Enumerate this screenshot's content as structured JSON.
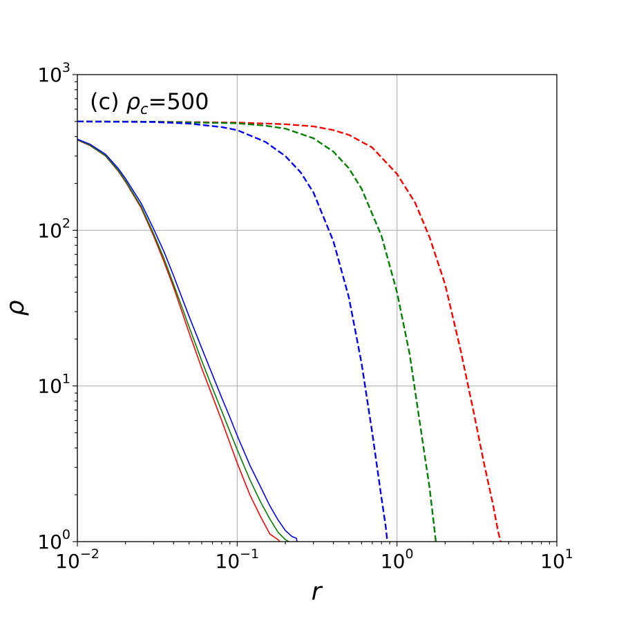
{
  "chart_data": {
    "type": "line",
    "annotation": {
      "prefix": "(c) ",
      "symbol": "ρ",
      "subscript": "c",
      "suffix": "=500"
    },
    "xlabel": "r",
    "ylabel": "ρ",
    "xscale": "log",
    "yscale": "log",
    "xlim": [
      0.01,
      10
    ],
    "ylim": [
      1,
      1000
    ],
    "grid": true,
    "xticks": [
      {
        "value": 0.01,
        "base": "10",
        "exp": "−2"
      },
      {
        "value": 0.1,
        "base": "10",
        "exp": "−1"
      },
      {
        "value": 1,
        "base": "10",
        "exp": "0"
      },
      {
        "value": 10,
        "base": "10",
        "exp": "1"
      }
    ],
    "yticks": [
      {
        "value": 1,
        "base": "10",
        "exp": "0"
      },
      {
        "value": 10,
        "base": "10",
        "exp": "1"
      },
      {
        "value": 100,
        "base": "10",
        "exp": "2"
      },
      {
        "value": 1000,
        "base": "10",
        "exp": "3"
      }
    ],
    "series": [
      {
        "color": "#ff0000",
        "style": "solid",
        "x": [
          0.01,
          0.012,
          0.015,
          0.018,
          0.02,
          0.025,
          0.03,
          0.035,
          0.04,
          0.05,
          0.06,
          0.07,
          0.08,
          0.09,
          0.1,
          0.12,
          0.14,
          0.16,
          0.18,
          0.185
        ],
        "y": [
          380,
          350,
          300,
          240,
          205,
          140,
          92,
          62,
          43,
          22,
          13,
          8.6,
          6.0,
          4.3,
          3.2,
          2.0,
          1.45,
          1.12,
          1.03,
          1.0
        ]
      },
      {
        "color": "#008000",
        "style": "solid",
        "x": [
          0.01,
          0.012,
          0.015,
          0.018,
          0.02,
          0.025,
          0.03,
          0.035,
          0.04,
          0.05,
          0.06,
          0.07,
          0.08,
          0.09,
          0.1,
          0.12,
          0.14,
          0.16,
          0.18,
          0.2,
          0.21
        ],
        "y": [
          382,
          352,
          302,
          243,
          208,
          143,
          95,
          65,
          45,
          24,
          14.5,
          9.7,
          6.9,
          5.1,
          3.9,
          2.5,
          1.8,
          1.4,
          1.15,
          1.03,
          1.0
        ]
      },
      {
        "color": "#0000ff",
        "style": "solid",
        "x": [
          0.01,
          0.012,
          0.015,
          0.018,
          0.02,
          0.025,
          0.03,
          0.035,
          0.04,
          0.05,
          0.06,
          0.07,
          0.08,
          0.09,
          0.1,
          0.12,
          0.14,
          0.16,
          0.18,
          0.2,
          0.22,
          0.235,
          0.237
        ],
        "y": [
          385,
          357,
          308,
          250,
          215,
          150,
          102,
          72,
          51,
          28,
          17.5,
          11.8,
          8.4,
          6.3,
          4.8,
          3.1,
          2.25,
          1.7,
          1.38,
          1.18,
          1.08,
          1.05,
          1.0
        ]
      },
      {
        "color": "#ff0000",
        "style": "dashed",
        "x": [
          0.01,
          0.03,
          0.1,
          0.2,
          0.3,
          0.4,
          0.5,
          0.7,
          1.0,
          1.3,
          1.6,
          2.0,
          2.5,
          3.0,
          3.5,
          4.0,
          4.3,
          4.45
        ],
        "y": [
          500,
          498,
          492,
          480,
          465,
          440,
          410,
          340,
          230,
          150,
          90,
          45,
          17,
          7,
          3.2,
          1.7,
          1.15,
          1.0
        ]
      },
      {
        "color": "#008000",
        "style": "dashed",
        "x": [
          0.01,
          0.03,
          0.1,
          0.15,
          0.2,
          0.3,
          0.4,
          0.5,
          0.6,
          0.8,
          1.0,
          1.2,
          1.4,
          1.6,
          1.7,
          1.75
        ],
        "y": [
          500,
          498,
          487,
          470,
          450,
          390,
          320,
          250,
          185,
          92,
          40,
          16,
          5.5,
          2.2,
          1.3,
          1.0
        ]
      },
      {
        "color": "#0000ff",
        "style": "dashed",
        "x": [
          0.01,
          0.03,
          0.05,
          0.08,
          0.1,
          0.15,
          0.2,
          0.25,
          0.3,
          0.4,
          0.5,
          0.6,
          0.7,
          0.8,
          0.85,
          0.87
        ],
        "y": [
          500,
          496,
          485,
          460,
          440,
          370,
          300,
          235,
          175,
          85,
          37,
          14,
          5,
          1.9,
          1.25,
          1.0
        ]
      }
    ]
  }
}
